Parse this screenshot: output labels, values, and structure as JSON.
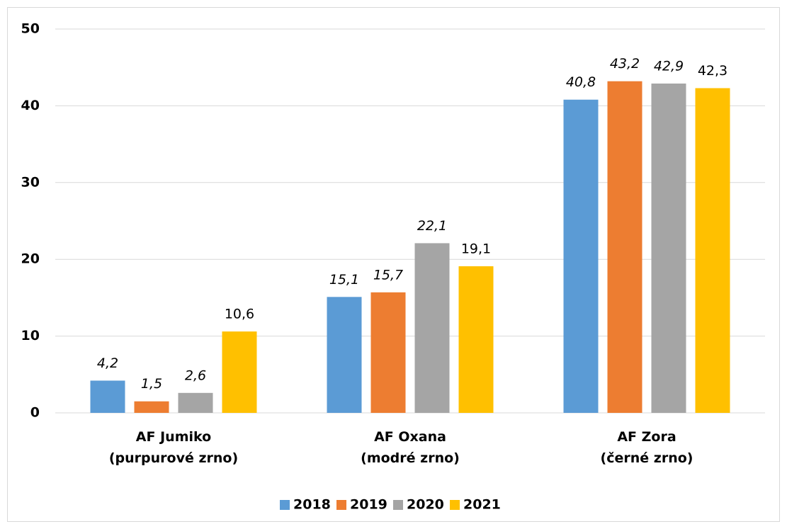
{
  "chart_data": {
    "type": "bar",
    "categories": [
      "AF Jumiko\n(purpurové zrno)",
      "AF Oxana\n(modré zrno)",
      "AF Zora\n(černé zrno)"
    ],
    "series": [
      {
        "name": "2018",
        "color": "#5b9bd5",
        "values": [
          4.2,
          15.1,
          40.8
        ],
        "value_labels": [
          "4,2",
          "15,1",
          "40,8"
        ],
        "label_font_style": "italic"
      },
      {
        "name": "2019",
        "color": "#ed7d31",
        "values": [
          1.5,
          15.7,
          43.2
        ],
        "value_labels": [
          "1,5",
          "15,7",
          "43,2"
        ],
        "label_font_style": "italic"
      },
      {
        "name": "2020",
        "color": "#a5a5a5",
        "values": [
          2.6,
          22.1,
          42.9
        ],
        "value_labels": [
          "2,6",
          "22,1",
          "42,9"
        ],
        "label_font_style": "italic"
      },
      {
        "name": "2021",
        "color": "#ffc000",
        "values": [
          10.6,
          19.1,
          42.3
        ],
        "value_labels": [
          "10,6",
          "19,1",
          "42,3"
        ],
        "label_font_style": "normal"
      }
    ],
    "ylim": [
      0,
      50
    ],
    "yticks": [
      0,
      10,
      20,
      30,
      40,
      50
    ],
    "grid": true,
    "legend": "bottom"
  }
}
